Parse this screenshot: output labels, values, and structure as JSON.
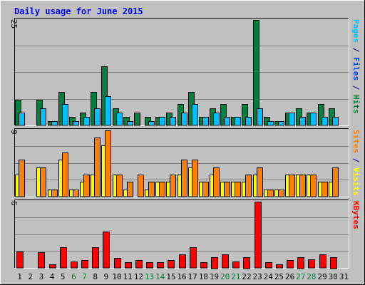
{
  "chart_data": {
    "type": "bar",
    "title": "Daily usage for June 2015",
    "categories": [
      "1",
      "2",
      "3",
      "4",
      "5",
      "6",
      "7",
      "8",
      "9",
      "10",
      "11",
      "12",
      "13",
      "14",
      "15",
      "16",
      "17",
      "18",
      "19",
      "20",
      "21",
      "22",
      "23",
      "24",
      "25",
      "26",
      "27",
      "28",
      "29",
      "30",
      "31"
    ],
    "weekend_days": [
      "6",
      "7",
      "13",
      "14",
      "20",
      "21",
      "27",
      "28"
    ],
    "panels": [
      {
        "id": "hits-files-pages",
        "ymax_label": "25",
        "ymax": 25,
        "legend": [
          {
            "text": "Pages",
            "color": "#00c0ff"
          },
          {
            "text": " / ",
            "color": "#000080"
          },
          {
            "text": "Files",
            "color": "#0040ff"
          },
          {
            "text": " / ",
            "color": "#000080"
          },
          {
            "text": "Hits",
            "color": "#008040"
          }
        ],
        "series": [
          {
            "name": "Hits",
            "color": "#008040",
            "values": [
              6,
              0,
              6,
              1,
              8,
              2,
              3,
              8,
              14,
              4,
              2,
              3,
              2,
              2,
              3,
              5,
              8,
              2,
              4,
              5,
              2,
              5,
              25,
              2,
              1,
              3,
              4,
              3,
              5,
              4,
              0
            ]
          },
          {
            "name": "Files",
            "color": "#0040ff",
            "values": [
              0,
              0,
              0,
              0,
              0,
              0,
              0,
              0,
              0,
              0,
              0,
              0,
              0,
              0,
              0,
              0,
              0,
              0,
              0,
              0,
              0,
              0,
              0,
              0,
              0,
              0,
              0,
              0,
              0,
              0,
              0
            ]
          },
          {
            "name": "Pages",
            "color": "#00c0ff",
            "values": [
              3,
              0,
              4,
              1,
              5,
              1,
              2,
              4,
              7,
              3,
              1,
              0,
              1,
              2,
              2,
              3,
              5,
              2,
              3,
              2,
              2,
              2,
              4,
              1,
              1,
              3,
              2,
              3,
              2,
              2,
              0
            ]
          }
        ]
      },
      {
        "id": "visits-sites",
        "ymax_label": "9",
        "ymax": 9,
        "legend": [
          {
            "text": "Sites",
            "color": "#ff8000"
          },
          {
            "text": " / ",
            "color": "#000080"
          },
          {
            "text": "Visits",
            "color": "#ffff00"
          }
        ],
        "series": [
          {
            "name": "Visits",
            "color": "#ffff00",
            "values": [
              3,
              0,
              4,
              1,
              5,
              1,
              2,
              3,
              7,
              3,
              1,
              0,
              1,
              2,
              2,
              3,
              4,
              2,
              3,
              2,
              2,
              2,
              3,
              1,
              1,
              3,
              3,
              3,
              2,
              2,
              0
            ]
          },
          {
            "name": "Sites",
            "color": "#ff8000",
            "values": [
              5,
              0,
              4,
              1,
              6,
              1,
              3,
              8,
              9,
              3,
              2,
              3,
              2,
              2,
              3,
              5,
              5,
              2,
              4,
              2,
              2,
              3,
              4,
              1,
              1,
              3,
              3,
              3,
              2,
              4,
              0
            ]
          }
        ]
      },
      {
        "id": "kbytes",
        "ymax_label": "6",
        "ymax": 6,
        "legend": [
          {
            "text": "KBytes",
            "color": "#ff0000"
          }
        ],
        "series": [
          {
            "name": "KBytes",
            "color": "#ff0000",
            "values": [
              1.5,
              0,
              1.4,
              0.3,
              1.9,
              0.6,
              0.7,
              1.9,
              3.3,
              0.9,
              0.5,
              0.7,
              0.5,
              0.5,
              0.7,
              1.2,
              1.9,
              0.5,
              1.0,
              1.2,
              0.6,
              1.0,
              6.0,
              0.5,
              0.3,
              0.7,
              1.0,
              0.8,
              1.2,
              1.0,
              0
            ]
          }
        ]
      }
    ]
  },
  "colors": {
    "background": "#c0c0c0",
    "plot_background": "#c0c0c0",
    "gridline": "#808080",
    "title": "#0000ff",
    "weekday_label": "#000000",
    "weekend_label": "#007f3f",
    "bar_outline": "#000000"
  }
}
